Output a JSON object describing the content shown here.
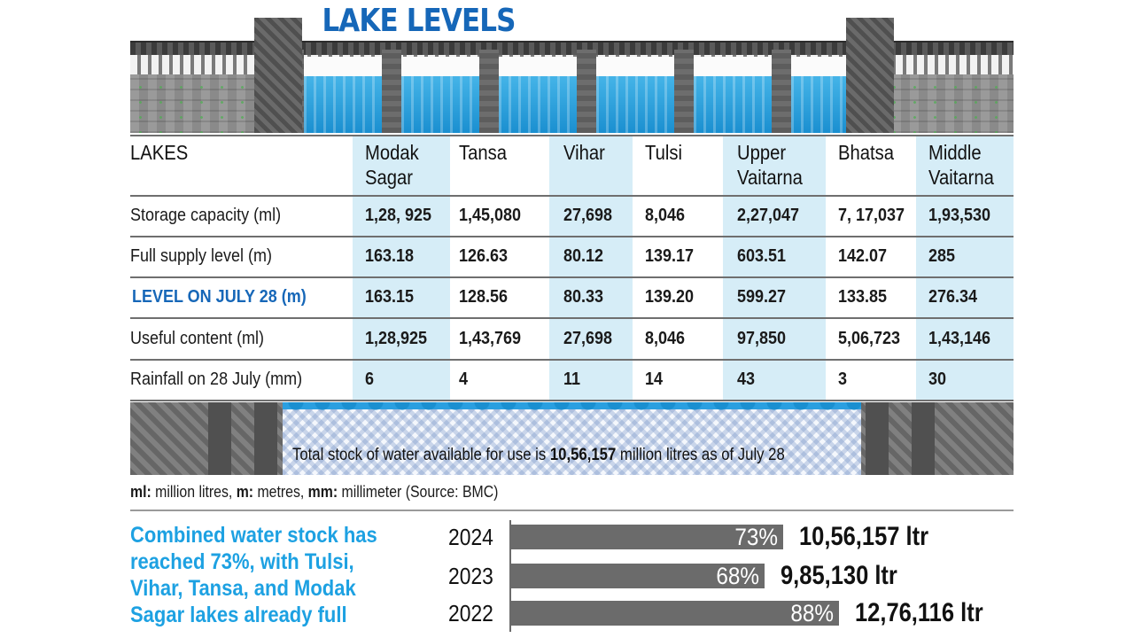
{
  "title": "LAKE LEVELS",
  "header": {
    "lakes_label": "LAKES"
  },
  "lakes": [
    "Modak Sagar",
    "Tansa",
    "Vihar",
    "Tulsi",
    "Upper Vaitarna",
    "Bhatsa",
    "Middle Vaitarna"
  ],
  "lake_header_lines": [
    [
      "Modak",
      "Sagar"
    ],
    [
      "Tansa"
    ],
    [
      "Vihar"
    ],
    [
      "Tulsi"
    ],
    [
      "Upper",
      "Vaitarna"
    ],
    [
      "Bhatsa"
    ],
    [
      "Middle",
      "Vaitarna"
    ]
  ],
  "rows": [
    {
      "label": "Storage capacity (ml)",
      "values": [
        "1,28, 925",
        "1,45,080",
        "27,698",
        "8,046",
        "2,27,047",
        "7, 17,037",
        "1,93,530"
      ],
      "highlight": false
    },
    {
      "label": "Full supply level (m)",
      "values": [
        "163.18",
        "126.63",
        "80.12",
        "139.17",
        "603.51",
        "142.07",
        "285"
      ],
      "highlight": false
    },
    {
      "label": "LEVEL ON JULY 28 (m)",
      "values": [
        "163.15",
        "128.56",
        "80.33",
        "139.20",
        "599.27",
        "133.85",
        "276.34"
      ],
      "highlight": true
    },
    {
      "label": "Useful content (ml)",
      "values": [
        "1,28,925",
        "1,43,769",
        "27,698",
        "8,046",
        "97,850",
        "5,06,723",
        "1,43,146"
      ],
      "highlight": false
    },
    {
      "label": "Rainfall on 28 July (mm)",
      "values": [
        "6",
        "4",
        "11",
        "14",
        "43",
        "3",
        "30"
      ],
      "highlight": false
    }
  ],
  "total": {
    "prefix": "Total stock of water available for use is ",
    "amount": "10,56,157",
    "suffix": " million litres as of July 28"
  },
  "legend": {
    "ml_key": "ml:",
    "ml_text": " million litres, ",
    "m_key": "m:",
    "m_text": " metres, ",
    "mm_key": "mm:",
    "mm_text": " millimeter (Source: BMC)"
  },
  "note": "Combined water stock has reached 73%, with Tulsi, Vihar, Tansa, and Modak Sagar lakes already full",
  "colors": {
    "title_blue": "#1667b8",
    "note_blue": "#1da1e2",
    "column_shade": "#d6edf7",
    "bar_gray": "#6b6b6b"
  },
  "chart_data": {
    "type": "bar",
    "orientation": "horizontal",
    "categories": [
      "2024",
      "2023",
      "2022"
    ],
    "values": [
      73,
      68,
      88
    ],
    "value_labels": [
      "73%",
      "68%",
      "88%"
    ],
    "volume_labels": [
      "10,56,157 ltr",
      "9,85,130 ltr",
      "12,76,116 ltr"
    ],
    "xlim": [
      0,
      100
    ]
  }
}
